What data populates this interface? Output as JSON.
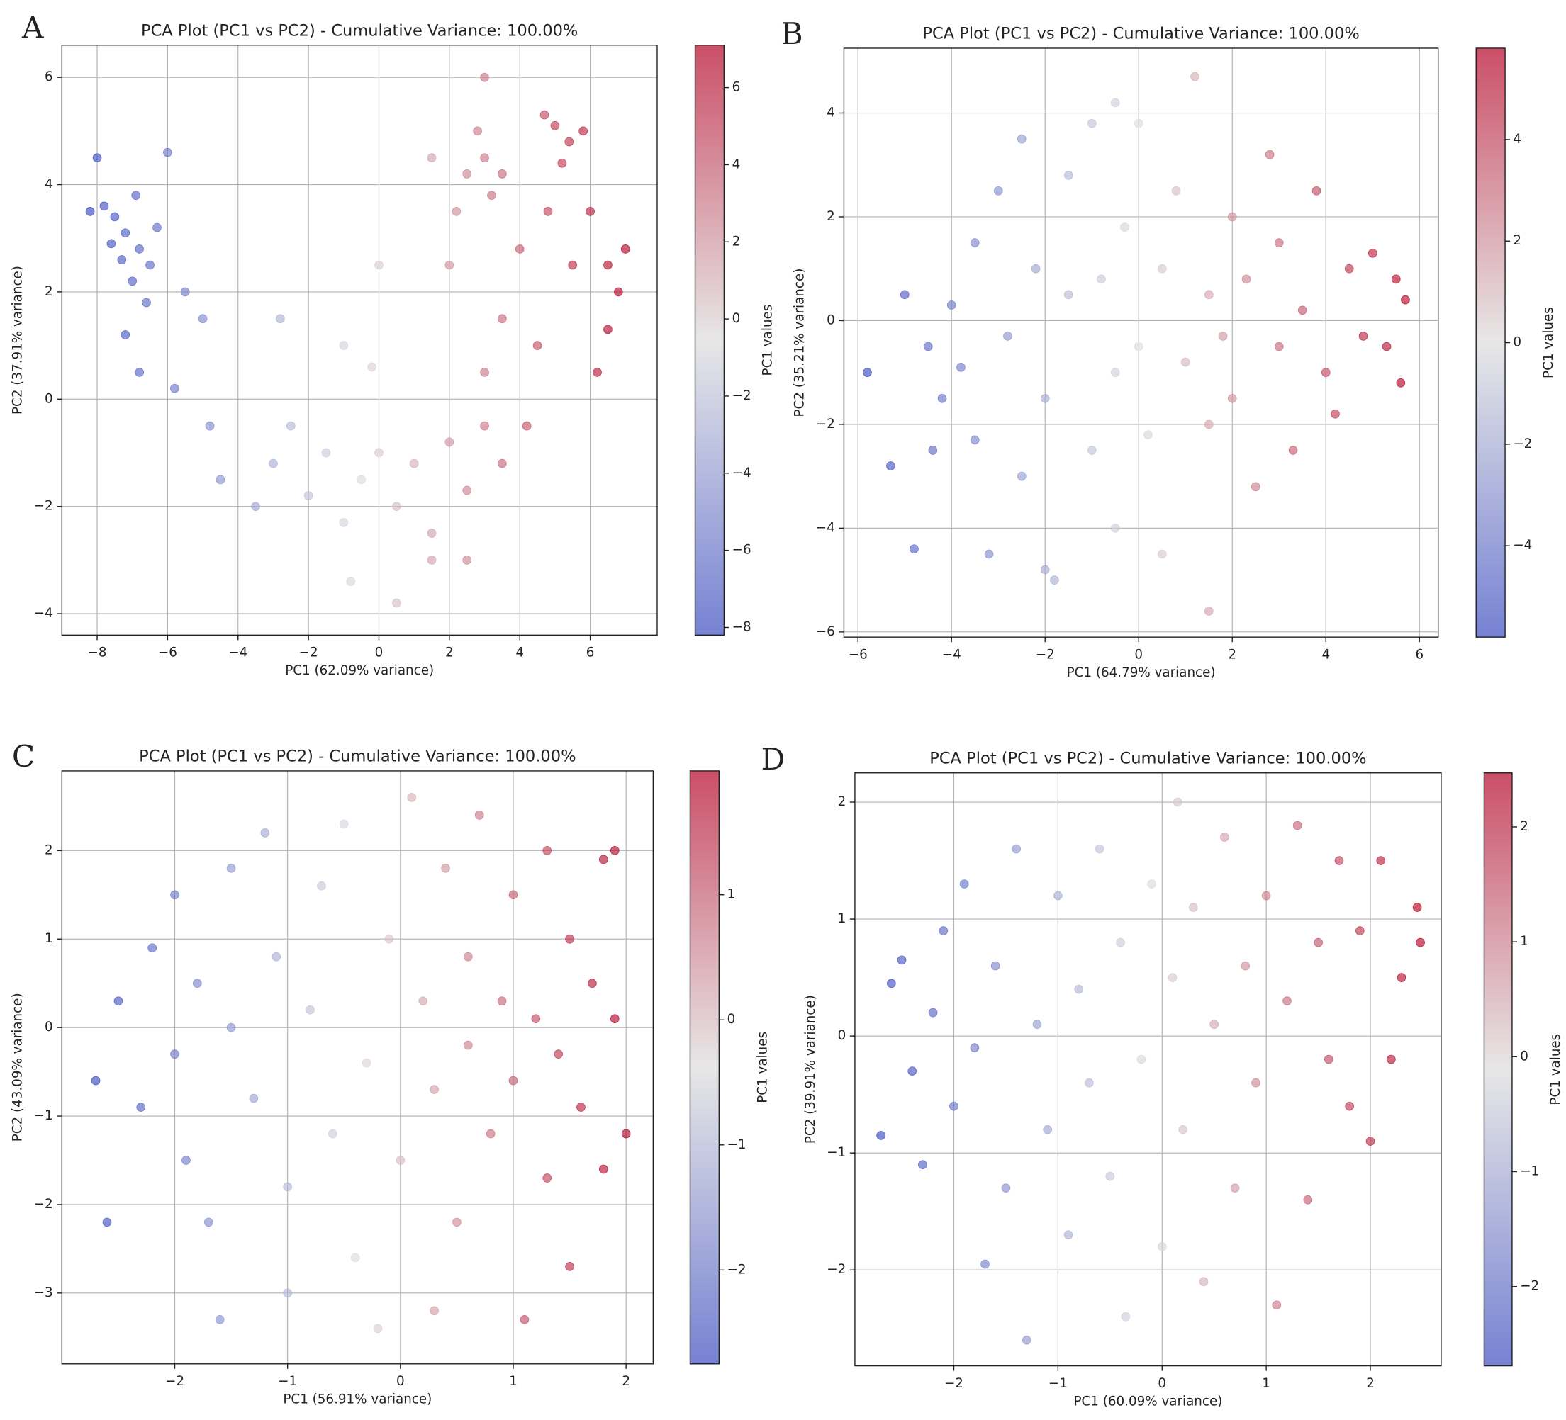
{
  "chart_data": [
    {
      "type": "scatter",
      "panel_label": "A",
      "title": "PCA Plot (PC1 vs PC2) - Cumulative Variance: 100.00%",
      "x_label": "PC1 (62.09% variance)",
      "y_label": "PC2 (37.91% variance)",
      "colorbar_label": "PC1 values",
      "x": [
        -7.2,
        -6.8,
        -7.5,
        -6.5,
        -7.0,
        -7.8,
        -6.3,
        -7.3,
        -6.9,
        -7.6,
        -6.6,
        -8.2,
        -8.0,
        -6.0,
        -5.5,
        -5.0,
        -5.8,
        -6.8,
        -4.8,
        -7.2,
        -3,
        -2.5,
        -2,
        -1.5,
        -1,
        -0.5,
        0,
        0.5,
        1,
        1.5,
        2,
        2.5,
        3,
        3.5,
        -3.5,
        -2.8,
        -1,
        0,
        -0.8,
        0.5,
        1.5,
        2.5,
        -4.5,
        -0.2,
        2.5,
        3,
        3.2,
        2.8,
        3.5,
        2.2,
        1.5,
        3,
        2,
        3.5,
        4,
        3,
        4.5,
        5,
        5.4,
        4.7,
        5.8,
        5.2,
        6,
        5.5,
        6.5,
        7,
        6.8,
        6.2,
        4.8,
        4.2,
        6.5
      ],
      "y": [
        3.1,
        2.8,
        3.4,
        2.5,
        2.2,
        3.6,
        3.2,
        2.6,
        3.8,
        2.9,
        1.8,
        3.5,
        4.5,
        4.6,
        2.0,
        1.5,
        0.2,
        0.5,
        -0.5,
        1.2,
        -1.2,
        -0.5,
        -1.8,
        -1,
        -2.3,
        -1.5,
        -1,
        -2,
        -1.2,
        -2.5,
        -0.8,
        -1.7,
        -0.5,
        -1.2,
        -2,
        1.5,
        1.0,
        2.5,
        -3.4,
        -3.8,
        -3,
        -3.0,
        -1.5,
        0.6,
        4.2,
        4.5,
        3.8,
        5.0,
        4.2,
        3.5,
        4.5,
        6.0,
        2.5,
        1.5,
        2.8,
        0.5,
        1.0,
        5.1,
        4.8,
        5.3,
        5.0,
        4.4,
        3.5,
        2.5,
        2.5,
        2.8,
        2.0,
        0.5,
        3.5,
        -0.5,
        1.3
      ],
      "xlim": [
        -9.0,
        7.9
      ],
      "ylim": [
        -4.4,
        6.6
      ],
      "xticks": [
        {
          "value": -8,
          "label": "−8"
        },
        {
          "value": -6,
          "label": "−6"
        },
        {
          "value": -4,
          "label": "−4"
        },
        {
          "value": -2,
          "label": "−2"
        },
        0,
        2,
        4,
        6
      ],
      "yticks": [
        {
          "value": -4,
          "label": "−4"
        },
        {
          "value": -2,
          "label": "−2"
        },
        0,
        2,
        4,
        6
      ],
      "clim": [
        -8.2,
        7.1
      ],
      "cticks": [
        {
          "value": -8,
          "label": "−8"
        },
        {
          "value": -6,
          "label": "−6"
        },
        {
          "value": -4,
          "label": "−4"
        },
        {
          "value": -2,
          "label": "−2"
        },
        0,
        2,
        4,
        6
      ],
      "colors": [
        "#3b4cc0",
        "#dddddd",
        "#b40426"
      ],
      "grid": true
    },
    {
      "type": "scatter",
      "panel_label": "B",
      "title": "PCA Plot (PC1 vs PC2) - Cumulative Variance: 100.00%",
      "x_label": "PC1 (64.79% variance)",
      "y_label": "PC2 (35.21% variance)",
      "colorbar_label": "PC1 values",
      "x": [
        -5.8,
        -5.3,
        -5,
        -4.8,
        -4.5,
        -4.2,
        -4,
        -3.8,
        -3.5,
        -3.5,
        -3.2,
        -3,
        -2.8,
        -2.5,
        -2.5,
        -2.2,
        -2,
        -1.8,
        -1.5,
        -1.5,
        -1,
        -1,
        -0.8,
        -0.5,
        -0.5,
        -0.3,
        0,
        0,
        0.2,
        0.5,
        0.5,
        0.8,
        1,
        1.2,
        1.5,
        1.5,
        1.8,
        2,
        2,
        2.3,
        2.5,
        2.8,
        3,
        3,
        3.3,
        3.5,
        3.8,
        4,
        4.2,
        4.5,
        4.8,
        5,
        5.3,
        5.5,
        5.7,
        5.6,
        -4.4,
        -2,
        1.5,
        -0.5
      ],
      "y": [
        -1,
        -2.8,
        0.5,
        -4.4,
        -0.5,
        -1.5,
        0.3,
        -0.9,
        1.5,
        -2.3,
        -4.5,
        2.5,
        -0.3,
        -3,
        3.5,
        1,
        -1.5,
        -5,
        0.5,
        2.8,
        -2.5,
        3.8,
        0.8,
        -1,
        -4,
        1.8,
        -0.5,
        3.8,
        -2.2,
        1,
        -4.5,
        2.5,
        -0.8,
        4.7,
        0.5,
        -2,
        -0.3,
        2,
        -1.5,
        0.8,
        -3.2,
        3.2,
        -0.5,
        1.5,
        -2.5,
        0.2,
        2.5,
        -1,
        -1.8,
        1,
        -0.3,
        1.3,
        -0.5,
        0.8,
        0.4,
        -1.2,
        -2.5,
        -4.8,
        -5.6,
        4.2
      ],
      "xlim": [
        -6.3,
        6.4
      ],
      "ylim": [
        -6.1,
        5.25
      ],
      "xticks": [
        {
          "value": -6,
          "label": "−6"
        },
        {
          "value": -4,
          "label": "−4"
        },
        {
          "value": -2,
          "label": "−2"
        },
        0,
        2,
        4,
        6
      ],
      "yticks": [
        {
          "value": -6,
          "label": "−6"
        },
        {
          "value": -4,
          "label": "−4"
        },
        {
          "value": -2,
          "label": "−2"
        },
        0,
        2,
        4
      ],
      "clim": [
        -5.8,
        5.8
      ],
      "cticks": [
        {
          "value": -4,
          "label": "−4"
        },
        {
          "value": -2,
          "label": "−2"
        },
        0,
        2,
        4
      ],
      "colors": [
        "#3b4cc0",
        "#dddddd",
        "#b40426"
      ],
      "grid": true
    },
    {
      "type": "scatter",
      "panel_label": "C",
      "title": "PCA Plot (PC1 vs PC2) - Cumulative Variance: 100.00%",
      "x_label": "PC1 (56.91% variance)",
      "y_label": "PC2 (43.09% variance)",
      "colorbar_label": "PC1 values",
      "x": [
        -2.7,
        -2.6,
        -2.5,
        -2.3,
        -2.2,
        -2,
        -2,
        -1.9,
        -1.8,
        -1.7,
        -1.6,
        -1.5,
        -1.5,
        -1.3,
        -1.2,
        -1.1,
        -1,
        -1,
        -0.8,
        -0.7,
        -0.6,
        -0.5,
        -0.4,
        -0.3,
        -0.2,
        -0.1,
        0,
        0.1,
        0.2,
        0.3,
        0.3,
        0.4,
        0.5,
        0.6,
        0.6,
        0.7,
        0.8,
        0.9,
        1,
        1,
        1.1,
        1.2,
        1.3,
        1.3,
        1.4,
        1.5,
        1.5,
        1.6,
        1.7,
        1.8,
        1.8,
        1.9,
        2,
        1.9
      ],
      "y": [
        -0.6,
        -2.2,
        0.3,
        -0.9,
        0.9,
        -0.3,
        1.5,
        -1.5,
        0.5,
        -2.2,
        -3.3,
        0,
        1.8,
        -0.8,
        2.2,
        0.8,
        -1.8,
        -3,
        0.2,
        1.6,
        -1.2,
        2.3,
        -2.6,
        -0.4,
        -3.4,
        1,
        -1.5,
        2.6,
        0.3,
        -0.7,
        -3.2,
        1.8,
        -2.2,
        0.8,
        -0.2,
        2.4,
        -1.2,
        0.3,
        -0.6,
        1.5,
        -3.3,
        0.1,
        -1.7,
        2.0,
        -0.3,
        1,
        -2.7,
        -0.9,
        0.5,
        1.9,
        -1.6,
        2,
        -1.2,
        0.1
      ],
      "xlim": [
        -3.0,
        2.24
      ],
      "ylim": [
        -3.8,
        2.9
      ],
      "xticks": [
        {
          "value": -2,
          "label": "−2"
        },
        {
          "value": -1,
          "label": "−1"
        },
        0,
        1,
        2
      ],
      "yticks": [
        {
          "value": -3,
          "label": "−3"
        },
        {
          "value": -2,
          "label": "−2"
        },
        {
          "value": -1,
          "label": "−1"
        },
        0,
        1,
        2
      ],
      "clim": [
        -2.75,
        1.99
      ],
      "cticks": [
        {
          "value": -2,
          "label": "−2"
        },
        {
          "value": -1,
          "label": "−1"
        },
        0,
        1
      ],
      "colors": [
        "#3b4cc0",
        "#dddddd",
        "#b40426"
      ],
      "grid": true
    },
    {
      "type": "scatter",
      "panel_label": "D",
      "title": "PCA Plot (PC1 vs PC2) - Cumulative Variance: 100.00%",
      "x_label": "PC1 (60.09% variance)",
      "y_label": "PC2 (39.91% variance)",
      "colorbar_label": "PC1 values",
      "x": [
        -2.7,
        -2.6,
        -2.5,
        -2.4,
        -2.3,
        -2.2,
        -2.1,
        -2,
        -1.9,
        -1.8,
        -1.7,
        -1.6,
        -1.5,
        -1.4,
        -1.3,
        -1.2,
        -1.1,
        -1,
        -0.9,
        -0.8,
        -0.7,
        -0.6,
        -0.5,
        -0.4,
        -0.35,
        -0.2,
        -0.1,
        0,
        0.1,
        0.15,
        0.2,
        0.3,
        0.4,
        0.5,
        0.6,
        0.7,
        0.8,
        0.9,
        1,
        1.1,
        1.2,
        1.3,
        1.4,
        1.5,
        1.6,
        1.7,
        1.8,
        1.9,
        2.0,
        2.1,
        2.3,
        2.45,
        2.48,
        2.2
      ],
      "y": [
        -0.85,
        0.45,
        0.65,
        -0.3,
        -1.1,
        0.2,
        0.9,
        -0.6,
        1.3,
        -0.1,
        -1.95,
        0.6,
        -1.3,
        1.6,
        -2.6,
        0.1,
        -0.8,
        1.2,
        -1.7,
        0.4,
        -0.4,
        1.6,
        -1.2,
        0.8,
        -2.4,
        -0.2,
        1.3,
        -1.8,
        0.5,
        2,
        -0.8,
        1.1,
        -2.1,
        0.1,
        1.7,
        -1.3,
        0.6,
        -0.4,
        1.2,
        -2.3,
        0.3,
        1.8,
        -1.4,
        0.8,
        -0.2,
        1.5,
        -0.6,
        0.9,
        -0.9,
        1.5,
        0.5,
        1.1,
        0.8,
        -0.2
      ],
      "xlim": [
        -2.95,
        2.68
      ],
      "ylim": [
        -2.82,
        2.25
      ],
      "xticks": [
        {
          "value": -2,
          "label": "−2"
        },
        {
          "value": -1,
          "label": "−1"
        },
        0,
        1,
        2
      ],
      "yticks": [
        {
          "value": -2,
          "label": "−2"
        },
        {
          "value": -1,
          "label": "−1"
        },
        0,
        1,
        2
      ],
      "clim": [
        -2.69,
        2.47
      ],
      "cticks": [
        {
          "value": -2,
          "label": "−2"
        },
        {
          "value": -1,
          "label": "−1"
        },
        0,
        1,
        2
      ],
      "colors": [
        "#3b4cc0",
        "#dddddd",
        "#b40426"
      ],
      "grid": true
    }
  ]
}
